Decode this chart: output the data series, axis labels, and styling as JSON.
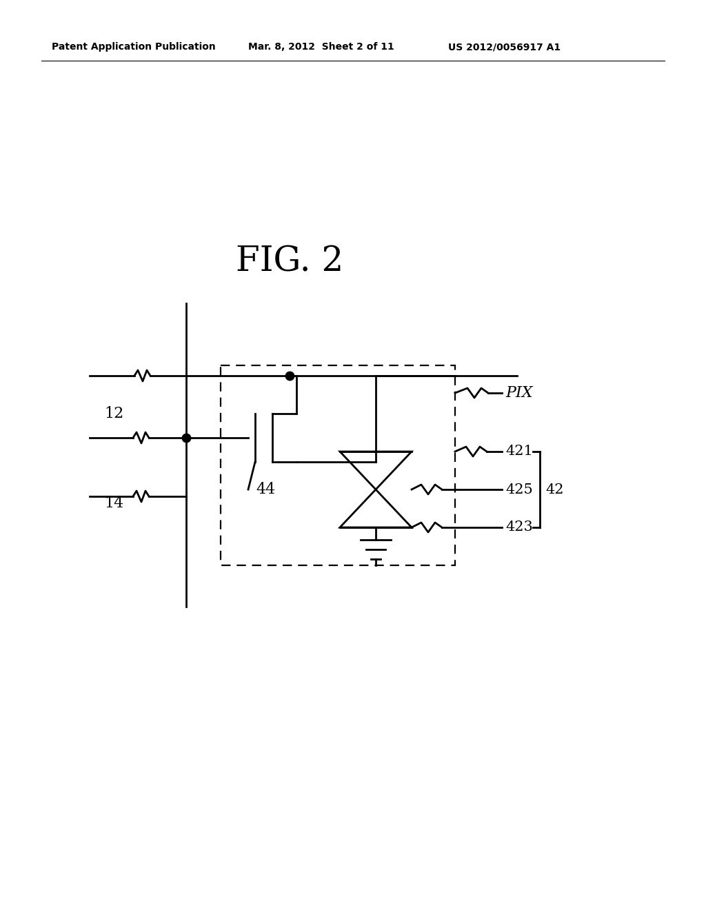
{
  "bg_color": "#ffffff",
  "title_text": "FIG. 2",
  "header_left": "Patent Application Publication",
  "header_mid": "Mar. 8, 2012  Sheet 2 of 11",
  "header_right": "US 2012/0056917 A1",
  "lw": 2.0,
  "dlw": 1.6
}
